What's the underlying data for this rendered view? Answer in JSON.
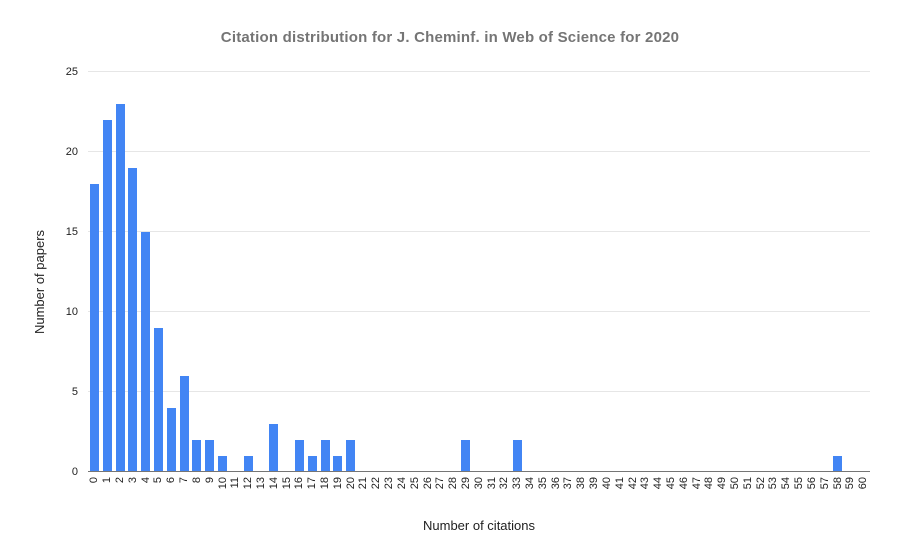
{
  "page": {
    "background": "#ffffff"
  },
  "colors": {
    "bar": "#4285f4",
    "title_text": "#757575",
    "axis_title_text": "#212121",
    "tick_text": "#1f1f1f",
    "gridline": "#e6e6e6",
    "axis_line": "#757575",
    "background": "#ffffff"
  },
  "chart_data": {
    "type": "bar",
    "title": "Citation distribution for J. Cheminf. in Web of Science for 2020",
    "xlabel": "Number of citations",
    "ylabel": "Number of papers",
    "ylim": [
      0,
      25
    ],
    "yticks": [
      0,
      5,
      10,
      15,
      20,
      25
    ],
    "grid": true,
    "legend": "none",
    "x_tick_rotation": -90,
    "categories": [
      "0",
      "1",
      "2",
      "3",
      "4",
      "5",
      "6",
      "7",
      "8",
      "9",
      "10",
      "11",
      "12",
      "13",
      "14",
      "15",
      "16",
      "17",
      "18",
      "19",
      "20",
      "21",
      "22",
      "23",
      "24",
      "25",
      "26",
      "27",
      "28",
      "29",
      "30",
      "31",
      "32",
      "33",
      "34",
      "35",
      "36",
      "37",
      "38",
      "39",
      "40",
      "41",
      "42",
      "43",
      "44",
      "45",
      "46",
      "47",
      "48",
      "49",
      "50",
      "51",
      "52",
      "53",
      "54",
      "55",
      "56",
      "57",
      "58",
      "59",
      "60"
    ],
    "values": [
      18,
      22,
      23,
      19,
      15,
      9,
      4,
      6,
      2,
      2,
      1,
      0,
      1,
      0,
      3,
      0,
      2,
      1,
      2,
      1,
      2,
      0,
      0,
      0,
      0,
      0,
      0,
      0,
      0,
      2,
      0,
      0,
      0,
      2,
      0,
      0,
      0,
      0,
      0,
      0,
      0,
      0,
      0,
      0,
      0,
      0,
      0,
      0,
      0,
      0,
      0,
      0,
      0,
      0,
      0,
      0,
      0,
      0,
      1,
      0,
      0
    ]
  }
}
